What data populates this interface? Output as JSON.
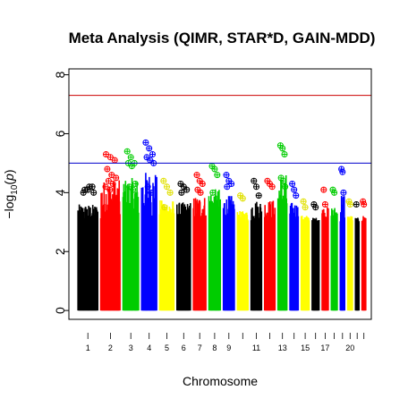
{
  "chart_data": {
    "type": "scatter",
    "title": "Meta Analysis (QIMR, STAR*D, GAIN-MDD)",
    "xlabel": "Chromosome",
    "ylabel": "−log10(p)",
    "ylim": [
      -0.3,
      8.2
    ],
    "yticks": [
      0,
      2,
      4,
      6,
      8
    ],
    "xtick_labels": [
      "1",
      "2",
      "3",
      "4",
      "5",
      "6",
      "7",
      "8",
      "9",
      "11",
      "13",
      "15",
      "17",
      "20"
    ],
    "thresholds": [
      {
        "value": 7.3,
        "color": "#cc0000"
      },
      {
        "value": 5.0,
        "color": "#0000cc"
      }
    ],
    "palette": [
      "#000000",
      "#ff0000",
      "#00cc00",
      "#0000ff",
      "#ffff00"
    ],
    "series": [
      {
        "chromosome": "1",
        "max": 4.2,
        "peaks": [
          4.0,
          4.1,
          4.2,
          4.1,
          4.2,
          4.0
        ]
      },
      {
        "chromosome": "2",
        "max": 5.3,
        "peaks": [
          5.3,
          5.2,
          5.1,
          4.8,
          4.6,
          4.5,
          4.4,
          4.3,
          4.2,
          4.1
        ]
      },
      {
        "chromosome": "3",
        "max": 5.4,
        "peaks": [
          5.4,
          5.2,
          5.0,
          5.0,
          4.9,
          4.3,
          4.2,
          4.1
        ]
      },
      {
        "chromosome": "4",
        "max": 5.7,
        "peaks": [
          5.7,
          5.5,
          5.3,
          5.2,
          5.1,
          5.0,
          4.2,
          4.0
        ]
      },
      {
        "chromosome": "5",
        "max": 4.4,
        "peaks": [
          4.4,
          4.2,
          4.0,
          3.5
        ]
      },
      {
        "chromosome": "6",
        "max": 4.3,
        "peaks": [
          4.3,
          4.2,
          4.1,
          4.0
        ]
      },
      {
        "chromosome": "7",
        "max": 4.6,
        "peaks": [
          4.6,
          4.4,
          4.3,
          4.1,
          4.0
        ]
      },
      {
        "chromosome": "8",
        "max": 4.9,
        "peaks": [
          4.9,
          4.8,
          4.6,
          4.0
        ]
      },
      {
        "chromosome": "9",
        "max": 4.6,
        "peaks": [
          4.6,
          4.4,
          4.3,
          4.2
        ]
      },
      {
        "chromosome": "10",
        "max": 3.9,
        "peaks": [
          3.9,
          3.8
        ]
      },
      {
        "chromosome": "11",
        "max": 4.4,
        "peaks": [
          4.4,
          4.2,
          3.9
        ]
      },
      {
        "chromosome": "12",
        "max": 4.4,
        "peaks": [
          4.4,
          4.3,
          4.2
        ]
      },
      {
        "chromosome": "13",
        "max": 5.6,
        "peaks": [
          5.6,
          5.5,
          5.3,
          4.5,
          4.4,
          4.2
        ]
      },
      {
        "chromosome": "14",
        "max": 4.3,
        "peaks": [
          4.3,
          4.1,
          3.9
        ]
      },
      {
        "chromosome": "15",
        "max": 3.7,
        "peaks": [
          3.7,
          3.5
        ]
      },
      {
        "chromosome": "16",
        "max": 3.6,
        "peaks": [
          3.6,
          3.5
        ]
      },
      {
        "chromosome": "17",
        "max": 4.1,
        "peaks": [
          4.1,
          3.6
        ]
      },
      {
        "chromosome": "18",
        "max": 4.1,
        "peaks": [
          4.1,
          4.0
        ]
      },
      {
        "chromosome": "19",
        "max": 4.8,
        "peaks": [
          4.8,
          4.7,
          4.0
        ]
      },
      {
        "chromosome": "20",
        "max": 3.7,
        "peaks": [
          3.7,
          3.6
        ]
      },
      {
        "chromosome": "21",
        "max": 3.6,
        "peaks": [
          3.6
        ]
      },
      {
        "chromosome": "22",
        "max": 3.7,
        "peaks": [
          3.7,
          3.6
        ]
      }
    ]
  }
}
